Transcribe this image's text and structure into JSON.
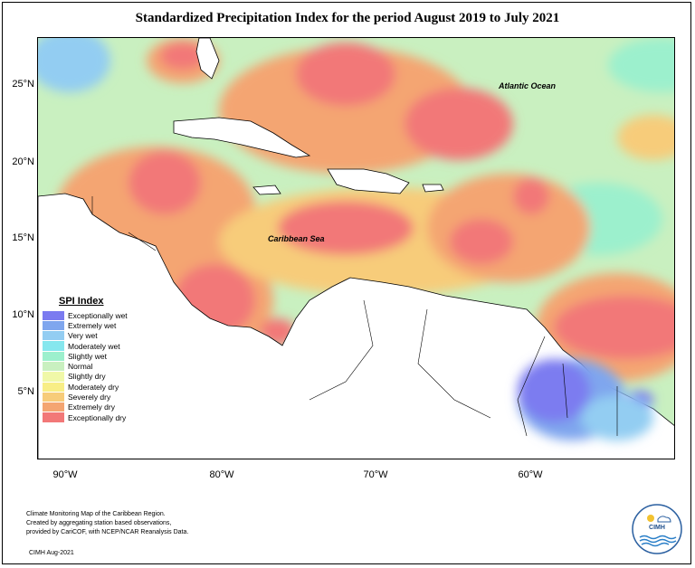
{
  "title": "Standardized Precipitation Index for the period August 2019 to July 2021",
  "map_labels": {
    "atlantic": "Atlantic Ocean",
    "caribbean": "Caribbean Sea"
  },
  "axes": {
    "lat_labels": [
      "25°N",
      "20°N",
      "15°N",
      "10°N",
      "5°N"
    ],
    "lon_labels": [
      "90°W",
      "80°W",
      "70°W",
      "60°W"
    ]
  },
  "legend": {
    "title": "SPI Index",
    "items": [
      {
        "label": "Exceptionally wet",
        "color": "#7b7bf0"
      },
      {
        "label": "Extremely wet",
        "color": "#7fa6ee"
      },
      {
        "label": "Very wet",
        "color": "#93cdf2"
      },
      {
        "label": "Moderately wet",
        "color": "#86e7ee"
      },
      {
        "label": "Slightly wet",
        "color": "#9cf0cd"
      },
      {
        "label": "Normal",
        "color": "#c9f0c0"
      },
      {
        "label": "Slightly dry",
        "color": "#f0f8a8"
      },
      {
        "label": "Moderately dry",
        "color": "#f8ee86"
      },
      {
        "label": "Severely dry",
        "color": "#f7cc7a"
      },
      {
        "label": "Extremely dry",
        "color": "#f4a572"
      },
      {
        "label": "Exceptionally dry",
        "color": "#f27878"
      }
    ]
  },
  "footnote": {
    "line1": "Climate Monitoring Map of the Caribbean Region.",
    "line2": "Created by aggregating station based observations,",
    "line3": "provided by CariCOF, with NCEP/NCAR Reanalysis Data."
  },
  "credit": "CIMH Aug-2021",
  "logo": {
    "text": "CIMH",
    "icon": "cimh-logo-icon"
  }
}
